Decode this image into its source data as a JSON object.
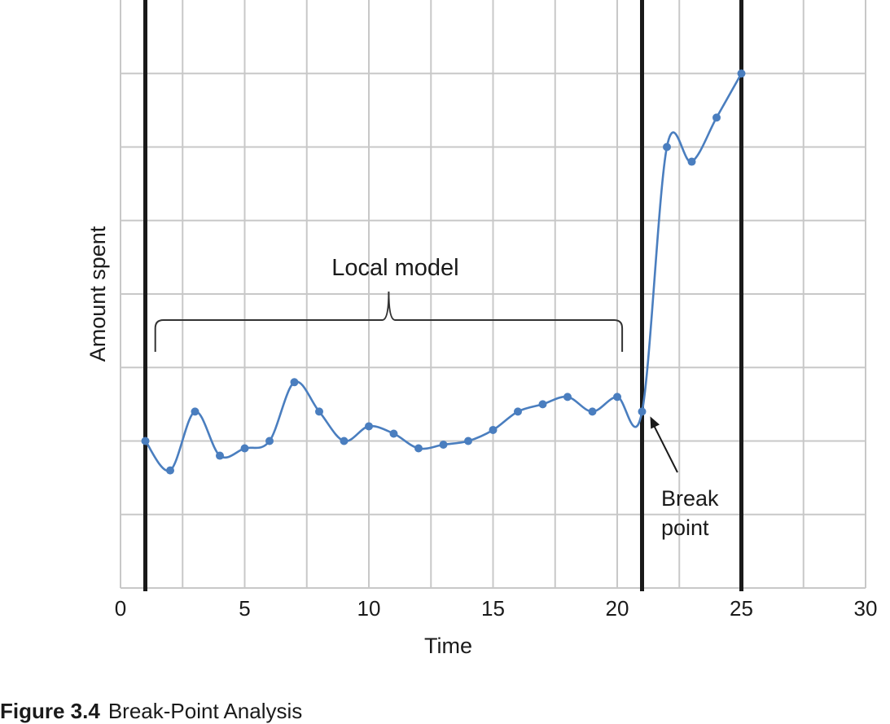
{
  "chart_data": {
    "type": "line",
    "title": "",
    "xlabel": "Time",
    "ylabel": "Amount spent",
    "xlim": [
      0,
      30
    ],
    "x_ticks": [
      0,
      5,
      10,
      15,
      20,
      25,
      30
    ],
    "ylim": [
      0,
      8
    ],
    "y_ticks_labeled": false,
    "grid": true,
    "smooth": true,
    "colors": {
      "series": "#4a7ebf",
      "vertical_lines": "#1a1a1a",
      "grid": "#c8c8c8"
    },
    "series": [
      {
        "x": [
          1,
          2,
          3,
          4,
          5,
          6,
          7,
          8,
          9,
          10,
          11,
          12,
          13,
          14,
          15,
          16,
          17,
          18,
          19,
          20,
          21,
          22,
          23,
          24,
          25
        ],
        "values": [
          2.0,
          1.6,
          2.4,
          1.8,
          1.9,
          2.0,
          2.8,
          2.4,
          2.0,
          2.2,
          2.1,
          1.9,
          1.95,
          2.0,
          2.15,
          2.4,
          2.5,
          2.6,
          2.4,
          2.6,
          2.4,
          6.0,
          5.8,
          6.4,
          7.0
        ]
      }
    ],
    "vertical_lines": [
      1,
      21,
      25
    ],
    "annotations": {
      "local_model": {
        "text": "Local model",
        "x_start": 1.4,
        "x_end": 20.2
      },
      "break_point": {
        "line1": "Break",
        "line2": "point",
        "x": 21,
        "y": 2.4
      }
    }
  },
  "caption": {
    "number": "Figure 3.4",
    "text": "Break-Point Analysis"
  }
}
